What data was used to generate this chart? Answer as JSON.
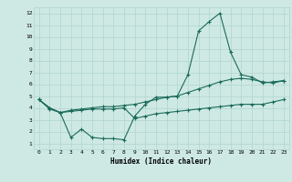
{
  "title": "",
  "xlabel": "Humidex (Indice chaleur)",
  "ylabel": "",
  "xlim": [
    -0.5,
    23.5
  ],
  "ylim": [
    0.5,
    12.5
  ],
  "xticks": [
    0,
    1,
    2,
    3,
    4,
    5,
    6,
    7,
    8,
    9,
    10,
    11,
    12,
    13,
    14,
    15,
    16,
    17,
    18,
    19,
    20,
    21,
    22,
    23
  ],
  "yticks": [
    1,
    2,
    3,
    4,
    5,
    6,
    7,
    8,
    9,
    10,
    11,
    12
  ],
  "bg_color": "#cee9e4",
  "grid_color": "#b0d4ce",
  "line_color": "#1a6b5a",
  "line1_x": [
    0,
    1,
    2,
    3,
    4,
    5,
    6,
    7,
    8,
    9,
    10,
    11,
    12,
    13,
    14,
    15,
    16,
    17,
    18,
    19,
    20,
    21,
    22,
    23
  ],
  "line1_y": [
    4.7,
    4.0,
    3.6,
    1.5,
    2.2,
    1.5,
    1.4,
    1.4,
    1.3,
    3.3,
    4.3,
    4.9,
    4.9,
    5.0,
    6.8,
    10.5,
    11.3,
    12.0,
    8.7,
    6.8,
    6.6,
    6.1,
    6.2,
    6.3
  ],
  "line2_x": [
    0,
    1,
    2,
    3,
    4,
    5,
    6,
    7,
    8,
    9,
    10,
    11,
    12,
    13,
    14,
    15,
    16,
    17,
    18,
    19,
    20,
    21,
    22,
    23
  ],
  "line2_y": [
    4.7,
    4.0,
    3.6,
    3.8,
    3.9,
    4.0,
    4.1,
    4.1,
    4.2,
    4.3,
    4.5,
    4.7,
    4.9,
    5.0,
    5.3,
    5.6,
    5.9,
    6.2,
    6.4,
    6.5,
    6.4,
    6.2,
    6.1,
    6.3
  ],
  "line3_x": [
    0,
    1,
    2,
    3,
    4,
    5,
    6,
    7,
    8,
    9,
    10,
    11,
    12,
    13,
    14,
    15,
    16,
    17,
    18,
    19,
    20,
    21,
    22,
    23
  ],
  "line3_y": [
    4.7,
    3.9,
    3.6,
    3.7,
    3.8,
    3.9,
    3.9,
    3.9,
    4.0,
    3.1,
    3.3,
    3.5,
    3.6,
    3.7,
    3.8,
    3.9,
    4.0,
    4.1,
    4.2,
    4.3,
    4.3,
    4.3,
    4.5,
    4.7
  ]
}
